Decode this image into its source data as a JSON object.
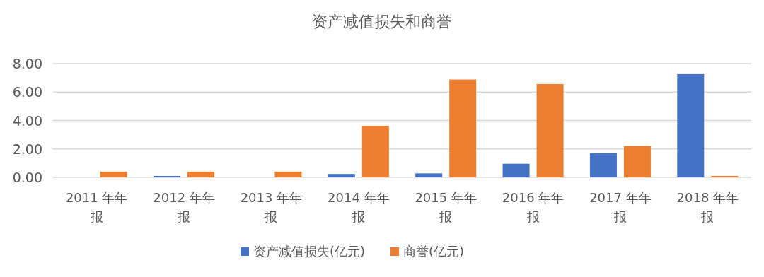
{
  "chart_data": {
    "type": "bar",
    "title": "资产减值损失和商誉",
    "categories": [
      "2011 年年报",
      "2012 年年报",
      "2013 年年报",
      "2014 年年报",
      "2015 年年报",
      "2016 年年报",
      "2017 年年报",
      "2018 年年报"
    ],
    "series": [
      {
        "name": "资产减值损失(亿元)",
        "color": "#4472c4",
        "values": [
          null,
          0.1,
          null,
          0.24,
          0.28,
          0.96,
          1.7,
          7.26
        ]
      },
      {
        "name": "商誉(亿元)",
        "color": "#ed7d31",
        "values": [
          0.4,
          0.4,
          0.4,
          3.62,
          6.88,
          6.56,
          2.21,
          0.1
        ]
      }
    ],
    "ylim": [
      0,
      8
    ],
    "yticks": [
      {
        "value": 0,
        "label": "0.00"
      },
      {
        "value": 2,
        "label": "2.00"
      },
      {
        "value": 4,
        "label": "4.00"
      },
      {
        "value": 6,
        "label": "6.00"
      },
      {
        "value": 8,
        "label": "8.00"
      }
    ],
    "grid": "y",
    "legend": "bottom"
  }
}
